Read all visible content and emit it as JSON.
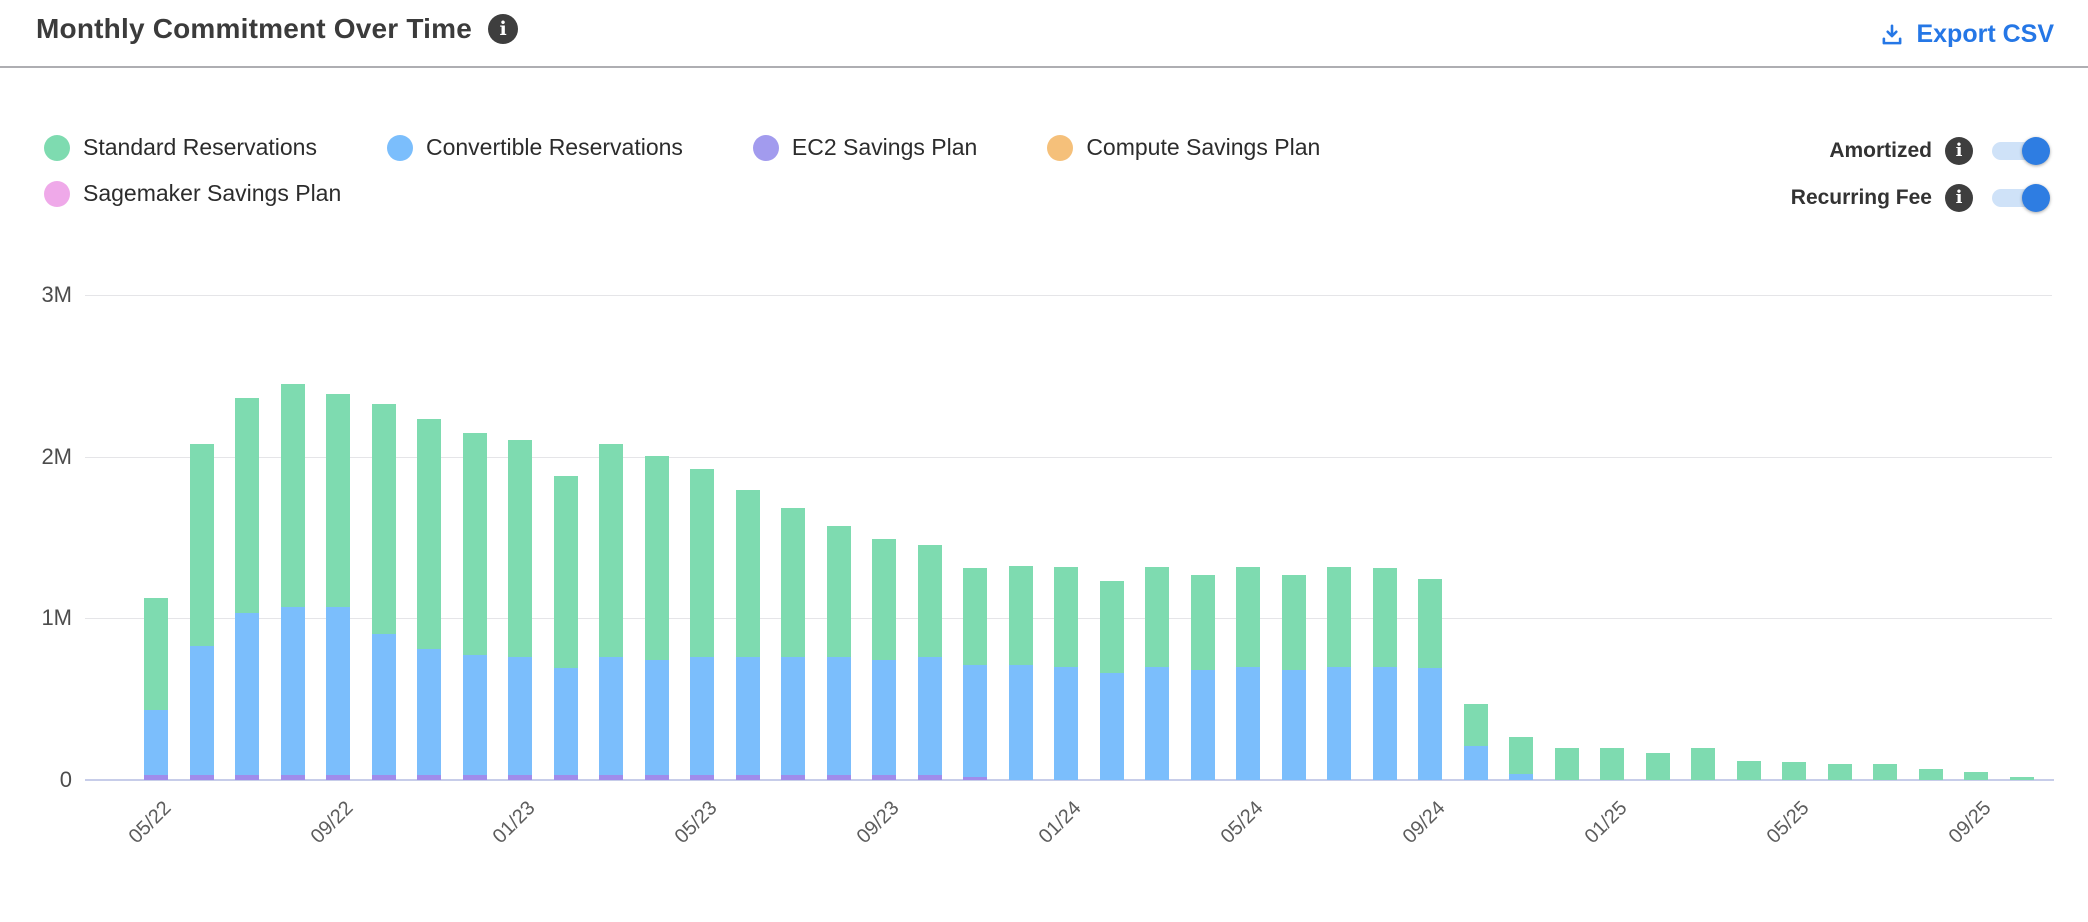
{
  "header": {
    "title": "Monthly Commitment Over Time",
    "export_label": "Export CSV"
  },
  "legend": {
    "items": [
      {
        "label": "Standard Reservations",
        "color": "#7edbb0"
      },
      {
        "label": "Convertible Reservations",
        "color": "#7bbefc"
      },
      {
        "label": "EC2 Savings Plan",
        "color": "#a29bee"
      },
      {
        "label": "Compute Savings Plan",
        "color": "#f5c07a"
      },
      {
        "label": "Sagemaker Savings Plan",
        "color": "#efa9e9"
      }
    ]
  },
  "toggles": [
    {
      "label": "Amortized",
      "state": "on"
    },
    {
      "label": "Recurring Fee",
      "state": "on"
    }
  ],
  "colors": {
    "accent_blue": "#2577e6",
    "toggle_on": "#2e7de2",
    "toggle_track": "#cfe2f8",
    "gridline": "#e5e5e8",
    "axis_line": "#c7cde9",
    "divider": "#aeaeb2"
  },
  "chart_data": {
    "type": "bar",
    "stacked": true,
    "stack_order": "bottom_to_top",
    "value_unit": "M",
    "ylim": [
      0,
      3
    ],
    "grid": true,
    "yticks": [
      {
        "label": "3M",
        "value": 3
      },
      {
        "label": "2M",
        "value": 2
      },
      {
        "label": "1M",
        "value": 1
      },
      {
        "label": "0",
        "value": 0
      }
    ],
    "xtick_every": 4,
    "xtick_labels": [
      "05/22",
      "09/22",
      "01/23",
      "05/23",
      "09/23",
      "01/24",
      "05/24",
      "09/24",
      "01/25",
      "05/25",
      "09/25"
    ],
    "categories": [
      "05/22",
      "06/22",
      "07/22",
      "08/22",
      "09/22",
      "10/22",
      "11/22",
      "12/22",
      "01/23",
      "02/23",
      "03/23",
      "04/23",
      "05/23",
      "06/23",
      "07/23",
      "08/23",
      "09/23",
      "10/23",
      "11/23",
      "12/23",
      "01/24",
      "02/24",
      "03/24",
      "04/24",
      "05/24",
      "06/24",
      "07/24",
      "08/24",
      "09/24",
      "10/24",
      "11/24",
      "12/24",
      "01/25",
      "02/25",
      "03/25",
      "04/25",
      "05/25",
      "06/25",
      "07/25",
      "08/25",
      "09/25",
      "10/25"
    ],
    "series": [
      {
        "name": "EC2 Savings Plan",
        "color": "#a08ceb",
        "values": [
          0.03,
          0.03,
          0.03,
          0.03,
          0.03,
          0.03,
          0.03,
          0.03,
          0.03,
          0.03,
          0.03,
          0.03,
          0.03,
          0.03,
          0.03,
          0.03,
          0.03,
          0.03,
          0.02,
          0,
          0,
          0,
          0,
          0,
          0,
          0,
          0,
          0,
          0,
          0,
          0,
          0,
          0,
          0,
          0,
          0,
          0,
          0,
          0,
          0,
          0,
          0
        ]
      },
      {
        "name": "Convertible Reservations",
        "color": "#7bbefc",
        "values": [
          0.4,
          0.8,
          1.0,
          1.04,
          1.04,
          0.87,
          0.78,
          0.74,
          0.73,
          0.66,
          0.73,
          0.71,
          0.73,
          0.73,
          0.73,
          0.73,
          0.71,
          0.73,
          0.69,
          0.71,
          0.7,
          0.66,
          0.7,
          0.68,
          0.7,
          0.68,
          0.7,
          0.7,
          0.69,
          0.21,
          0.04,
          0,
          0,
          0,
          0,
          0,
          0,
          0,
          0,
          0,
          0,
          0
        ]
      },
      {
        "name": "Standard Reservations",
        "color": "#7edbb0",
        "values": [
          0.69,
          1.25,
          1.33,
          1.38,
          1.32,
          1.42,
          1.42,
          1.37,
          1.34,
          1.19,
          1.32,
          1.26,
          1.16,
          1.03,
          0.92,
          0.81,
          0.75,
          0.69,
          0.6,
          0.61,
          0.62,
          0.57,
          0.62,
          0.59,
          0.62,
          0.59,
          0.62,
          0.61,
          0.55,
          0.26,
          0.23,
          0.2,
          0.2,
          0.17,
          0.2,
          0.12,
          0.11,
          0.1,
          0.1,
          0.07,
          0.05,
          0.02
        ]
      },
      {
        "name": "Compute Savings Plan",
        "color": "#f5c07a",
        "values": [
          0,
          0,
          0,
          0,
          0,
          0,
          0,
          0,
          0,
          0,
          0,
          0,
          0,
          0,
          0,
          0,
          0,
          0,
          0,
          0,
          0,
          0,
          0,
          0,
          0,
          0,
          0,
          0,
          0,
          0,
          0,
          0,
          0,
          0,
          0,
          0,
          0,
          0,
          0,
          0,
          0,
          0
        ]
      },
      {
        "name": "Sagemaker Savings Plan",
        "color": "#efa9e9",
        "values": [
          0,
          0,
          0,
          0,
          0,
          0,
          0,
          0,
          0,
          0,
          0,
          0,
          0,
          0,
          0,
          0,
          0,
          0,
          0,
          0,
          0,
          0,
          0,
          0,
          0,
          0,
          0,
          0,
          0,
          0,
          0,
          0,
          0,
          0,
          0,
          0,
          0,
          0,
          0,
          0,
          0,
          0
        ]
      }
    ]
  }
}
